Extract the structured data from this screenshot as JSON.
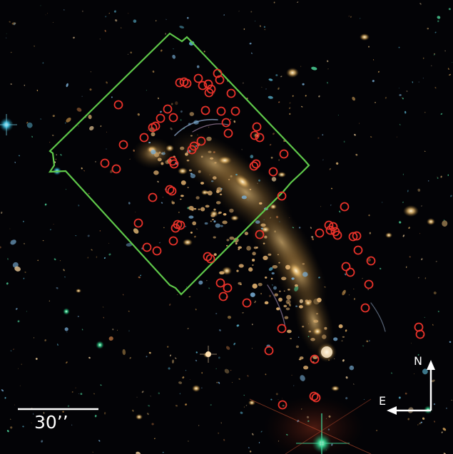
{
  "image": {
    "description_type": "astronomical-cluster-field",
    "scale_bar": {
      "label": "30’’"
    },
    "compass": {
      "north": "N",
      "east": "E"
    },
    "colors": {
      "region_outline": "#5fc84a",
      "markers": "#e8322a",
      "cluster_light": "#c89a55",
      "background": "#030306",
      "annotation": "#ffffff"
    },
    "icons": {
      "compass": "north-east-arrows-icon",
      "scale": "scale-bar-icon"
    }
  }
}
